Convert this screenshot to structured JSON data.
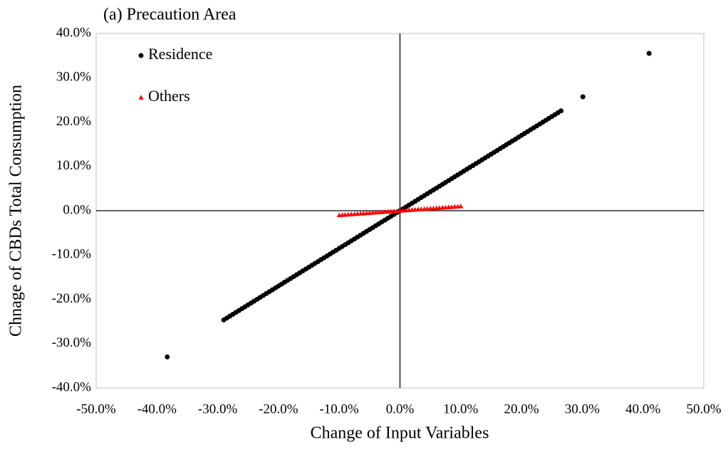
{
  "chart_data": {
    "type": "scatter",
    "title": "(a) Precaution Area",
    "x_label": "Change of Input Variables",
    "y_label": "Chnage of CBDs Total Consumption",
    "xlim": [
      -50,
      50
    ],
    "ylim": [
      -40,
      40
    ],
    "xticks": [
      {
        "value": -50,
        "label": "-50.0%"
      },
      {
        "value": -40,
        "label": "-40.0%"
      },
      {
        "value": -30,
        "label": "-30.0%"
      },
      {
        "value": -20,
        "label": "-20.0%"
      },
      {
        "value": -10,
        "label": "-10.0%"
      },
      {
        "value": 0,
        "label": "0.0%"
      },
      {
        "value": 10,
        "label": "10.0%"
      },
      {
        "value": 20,
        "label": "20.0%"
      },
      {
        "value": 30,
        "label": "30.0%"
      },
      {
        "value": 40,
        "label": "40.0%"
      },
      {
        "value": 50,
        "label": "50.0%"
      }
    ],
    "yticks": [
      {
        "value": -40,
        "label": "-40.0%"
      },
      {
        "value": -30,
        "label": "-30.0%"
      },
      {
        "value": -20,
        "label": "-20.0%"
      },
      {
        "value": -10,
        "label": "-10.0%"
      },
      {
        "value": 0,
        "label": "0.0%"
      },
      {
        "value": 10,
        "label": "10.0%"
      },
      {
        "value": 20,
        "label": "20.0%"
      },
      {
        "value": 30,
        "label": "30.0%"
      },
      {
        "value": 40,
        "label": "40.0%"
      }
    ],
    "grid": false,
    "legend": "upper left",
    "series": [
      {
        "name": "Residence",
        "color": "#000000",
        "marker": "circle",
        "x": [
          -38.3,
          -29,
          -28.5,
          -28,
          -27.5,
          -27,
          -26.5,
          -26,
          -25.5,
          -25,
          -24.5,
          -24,
          -23.5,
          -23,
          -22.5,
          -22,
          -21.5,
          -21,
          -20.5,
          -20,
          -19.5,
          -19,
          -18.5,
          -18,
          -17.5,
          -17,
          -16.5,
          -16,
          -15.5,
          -15,
          -14.5,
          -14,
          -13.5,
          -13,
          -12.5,
          -12,
          -11.5,
          -11,
          -10.5,
          -10,
          -9.5,
          -9,
          -8.5,
          -8,
          -7.5,
          -7,
          -6.5,
          -6,
          -5.5,
          -5,
          -4.5,
          -4,
          -3.5,
          -3,
          -2.5,
          -2,
          -1.5,
          -1,
          -0.5,
          0,
          0.5,
          1,
          1.5,
          2,
          2.5,
          3,
          3.5,
          4,
          4.5,
          5,
          5.5,
          6,
          6.5,
          7,
          7.5,
          8,
          8.5,
          9,
          9.5,
          10,
          10.5,
          11,
          11.5,
          12,
          12.5,
          13,
          13.5,
          14,
          14.5,
          15,
          15.5,
          16,
          16.5,
          17,
          17.5,
          18,
          18.5,
          19,
          19.5,
          20,
          20.5,
          21,
          21.5,
          22,
          22.5,
          23,
          23.5,
          24,
          24.5,
          25,
          25.5,
          26,
          26.5,
          30.1,
          41.0
        ],
        "values": [
          -33,
          -24.65,
          -24.23,
          -23.8,
          -23.38,
          -22.95,
          -22.53,
          -22.1,
          -21.68,
          -21.25,
          -20.83,
          -20.4,
          -19.98,
          -19.55,
          -19.13,
          -18.7,
          -18.28,
          -17.85,
          -17.43,
          -17,
          -16.58,
          -16.15,
          -15.73,
          -15.3,
          -14.88,
          -14.45,
          -14.03,
          -13.6,
          -13.18,
          -12.75,
          -12.33,
          -11.9,
          -11.48,
          -11.05,
          -10.63,
          -10.2,
          -9.78,
          -9.35,
          -8.93,
          -8.5,
          -8.08,
          -7.65,
          -7.23,
          -6.8,
          -6.38,
          -5.95,
          -5.53,
          -5.1,
          -4.68,
          -4.25,
          -3.83,
          -3.4,
          -2.98,
          -2.55,
          -2.13,
          -1.7,
          -1.28,
          -0.85,
          -0.43,
          0,
          0.43,
          0.85,
          1.28,
          1.7,
          2.13,
          2.55,
          2.98,
          3.4,
          3.83,
          4.25,
          4.68,
          5.1,
          5.53,
          5.95,
          6.38,
          6.8,
          7.23,
          7.65,
          8.08,
          8.5,
          8.93,
          9.35,
          9.78,
          10.2,
          10.63,
          11.05,
          11.48,
          11.9,
          12.33,
          12.75,
          13.18,
          13.6,
          14.03,
          14.45,
          14.88,
          15.3,
          15.73,
          16.15,
          16.58,
          17,
          17.43,
          17.85,
          18.28,
          18.7,
          19.13,
          19.55,
          19.98,
          20.4,
          20.83,
          21.25,
          21.68,
          22.1,
          22.53,
          25.7,
          35.5
        ]
      },
      {
        "name": "Others",
        "color": "#ff0000",
        "marker": "triangle",
        "x": [
          -10,
          -9.5,
          -9,
          -8.5,
          -8,
          -7.5,
          -7,
          -6.5,
          -6,
          -5.5,
          -5,
          -4.5,
          -4,
          -3.5,
          -3,
          -2.5,
          -2,
          -1.5,
          -1,
          -0.5,
          0,
          0.5,
          1,
          1.5,
          2,
          2.5,
          3,
          3.5,
          4,
          4.5,
          5,
          5.5,
          6,
          6.5,
          7,
          7.5,
          8,
          8.5,
          9,
          9.5,
          10
        ],
        "values": [
          -1,
          -0.95,
          -0.9,
          -0.85,
          -0.8,
          -0.75,
          -0.7,
          -0.65,
          -0.6,
          -0.55,
          -0.5,
          -0.45,
          -0.4,
          -0.35,
          -0.3,
          -0.25,
          -0.2,
          -0.15,
          -0.1,
          -0.05,
          0,
          0.05,
          0.1,
          0.15,
          0.2,
          0.25,
          0.3,
          0.35,
          0.4,
          0.45,
          0.5,
          0.55,
          0.6,
          0.65,
          0.7,
          0.75,
          0.8,
          0.85,
          0.9,
          0.95,
          1
        ]
      }
    ]
  }
}
